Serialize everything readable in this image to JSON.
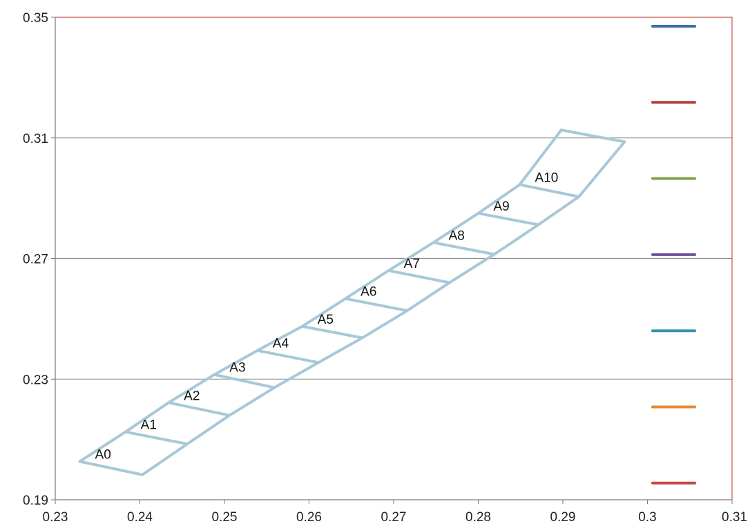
{
  "chart_data": {
    "type": "line",
    "title": "",
    "xlabel": "",
    "ylabel": "",
    "xlim": [
      0.23,
      0.31
    ],
    "ylim": [
      0.19,
      0.35
    ],
    "x_ticks": [
      0.23,
      0.24,
      0.25,
      0.26,
      0.27,
      0.28,
      0.29,
      0.3,
      0.31
    ],
    "x_tick_labels": [
      "0.23",
      "0.24",
      "0.25",
      "0.26",
      "0.27",
      "0.28",
      "0.29",
      "0.3",
      "0.31"
    ],
    "y_ticks": [
      0.19,
      0.23,
      0.27,
      0.31,
      0.35
    ],
    "y_tick_labels": [
      "0.19",
      "0.23",
      "0.27",
      "0.31",
      "0.35"
    ],
    "grid": {
      "horizontal": true,
      "vertical": false
    },
    "series_color": "#a8c8d8",
    "plot_border_color": "#c0504d",
    "points": [
      {
        "label": "A0",
        "left": [
          0.2329,
          0.2027
        ],
        "right": [
          0.2403,
          0.1983
        ]
      },
      {
        "label": "A1",
        "left": [
          0.2383,
          0.2125
        ],
        "right": [
          0.2456,
          0.2085
        ]
      },
      {
        "label": "A2",
        "left": [
          0.2434,
          0.2222
        ],
        "right": [
          0.2506,
          0.218
        ]
      },
      {
        "label": "A3",
        "left": [
          0.2488,
          0.2315
        ],
        "right": [
          0.2559,
          0.2272
        ]
      },
      {
        "label": "A4",
        "left": [
          0.2539,
          0.2395
        ],
        "right": [
          0.2611,
          0.2355
        ]
      },
      {
        "label": "A5",
        "left": [
          0.2592,
          0.2475
        ],
        "right": [
          0.2663,
          0.2437
        ]
      },
      {
        "label": "A6",
        "left": [
          0.2643,
          0.2567
        ],
        "right": [
          0.2716,
          0.2527
        ]
      },
      {
        "label": "A7",
        "left": [
          0.2694,
          0.266
        ],
        "right": [
          0.2766,
          0.262
        ]
      },
      {
        "label": "A8",
        "left": [
          0.2747,
          0.2753
        ],
        "right": [
          0.2819,
          0.2714
        ]
      },
      {
        "label": "A9",
        "left": [
          0.28,
          0.285
        ],
        "right": [
          0.2871,
          0.2812
        ]
      },
      {
        "label": "A10",
        "left": [
          0.2849,
          0.2945
        ],
        "right": [
          0.2919,
          0.2905
        ]
      }
    ],
    "closing_edge": {
      "top_left": [
        0.2898,
        0.3126
      ],
      "top_right": [
        0.2973,
        0.3087
      ]
    },
    "legend": {
      "placement": "right",
      "entries": [
        {
          "name": "",
          "color": "#3c6fa8"
        },
        {
          "name": "",
          "color": "#b33f3c"
        },
        {
          "name": "",
          "color": "#80a34a"
        },
        {
          "name": "",
          "color": "#6f4f9c"
        },
        {
          "name": "",
          "color": "#3795aa"
        },
        {
          "name": "",
          "color": "#e28a34"
        },
        {
          "name": "",
          "color": "#c24a4c"
        }
      ]
    }
  }
}
